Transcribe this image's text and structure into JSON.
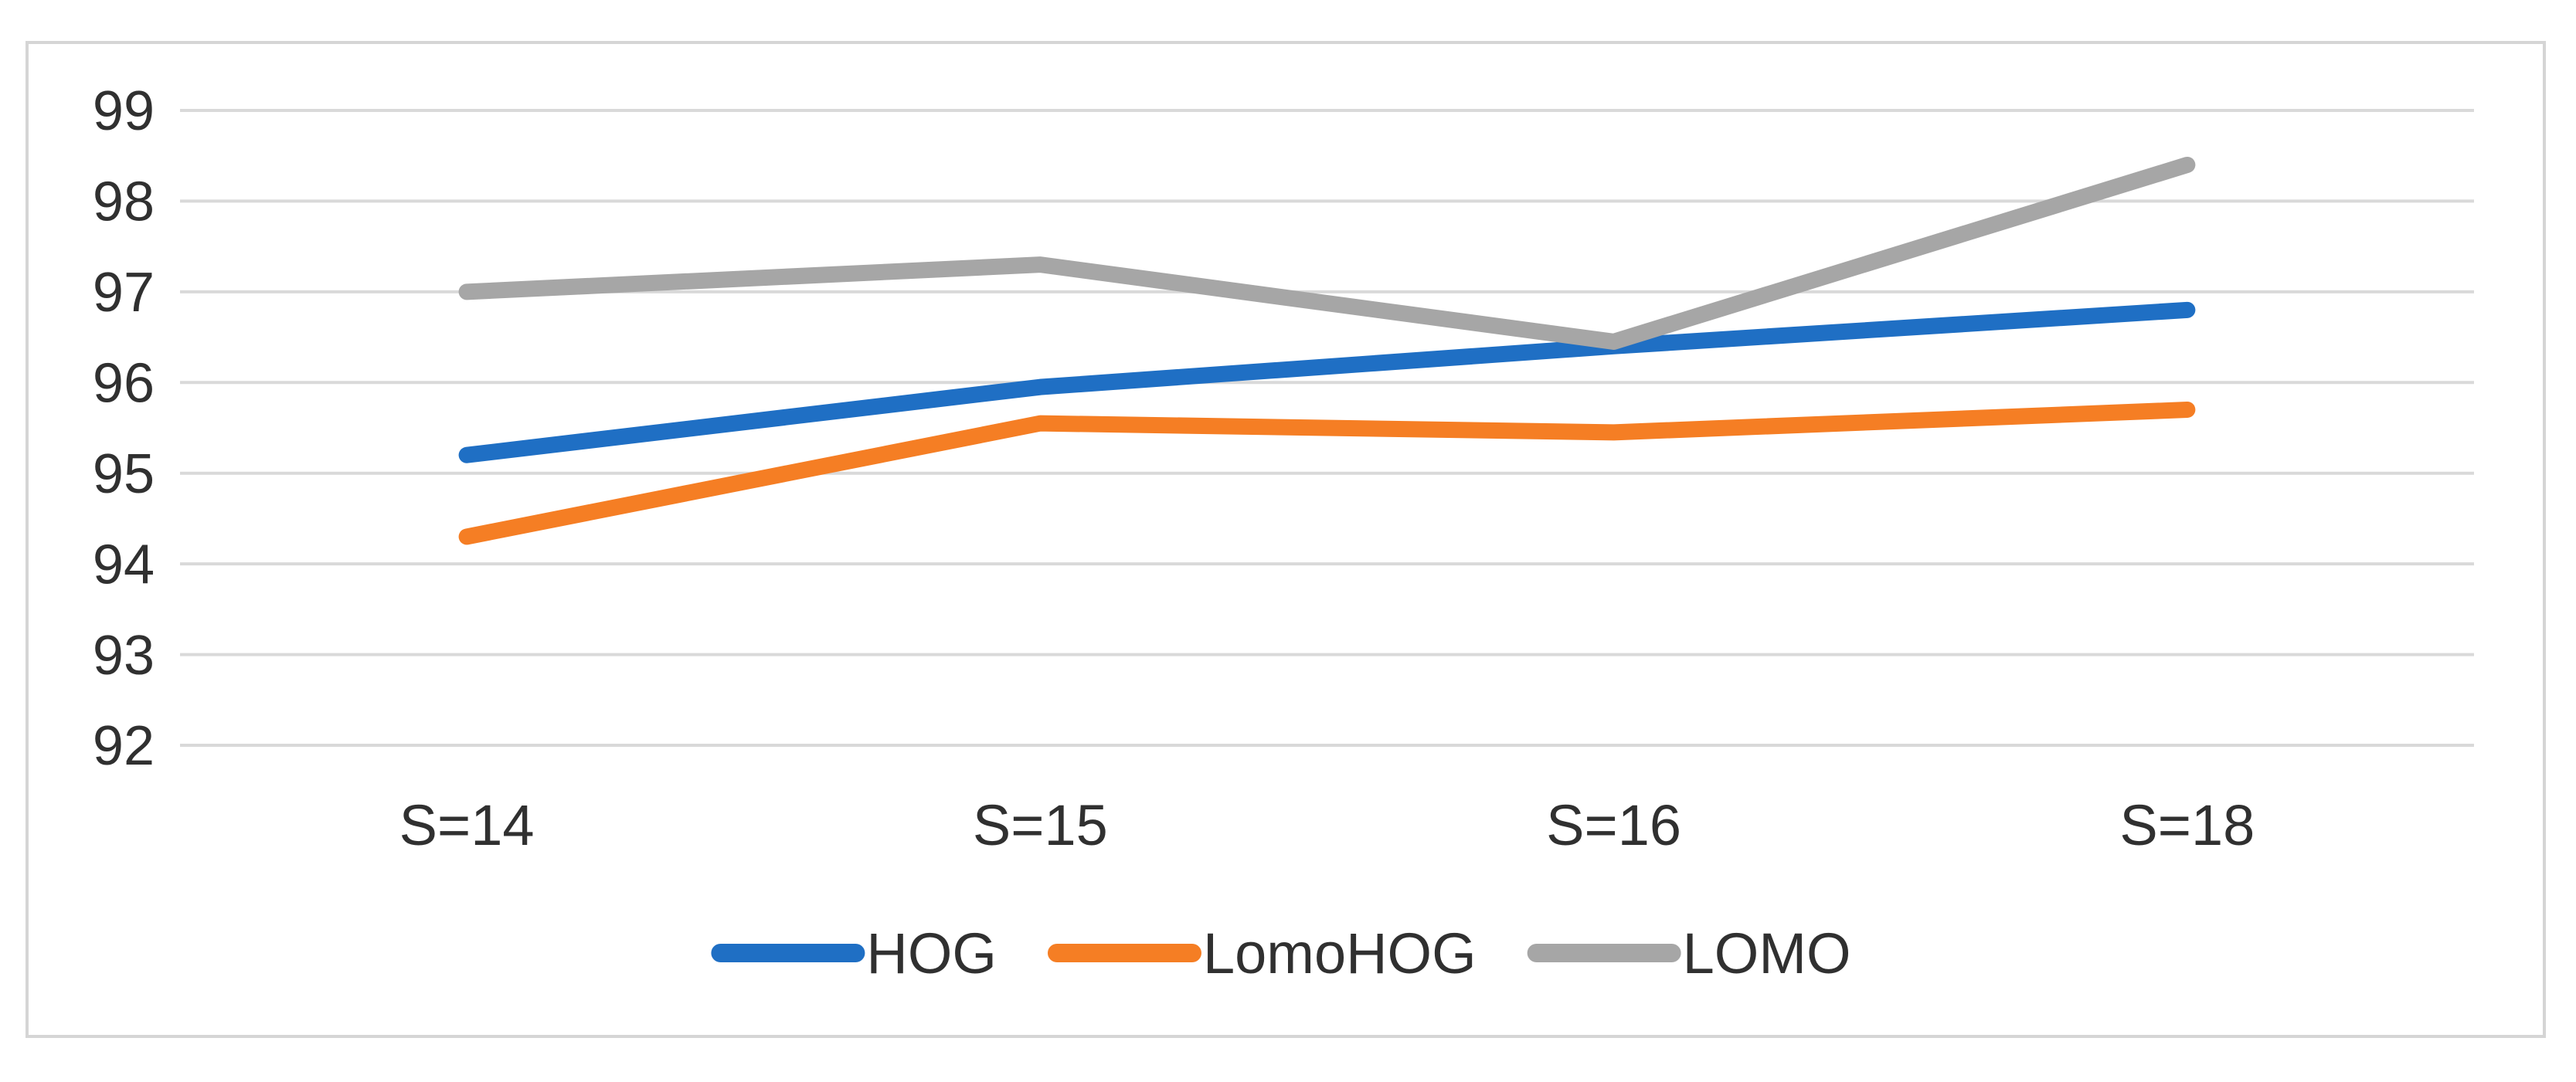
{
  "figure": {
    "background": "#ffffff",
    "border_color": "#d5d5d5"
  },
  "chart_data": {
    "type": "line",
    "title": "",
    "xlabel": "",
    "ylabel": "",
    "categories": [
      "S=14",
      "S=15",
      "S=16",
      "S=18"
    ],
    "series": [
      {
        "name": "HOG",
        "color": "#1f6fc4",
        "values": [
          95.2,
          95.95,
          96.4,
          96.8
        ]
      },
      {
        "name": "LomoHOG",
        "color": "#f57e24",
        "values": [
          94.3,
          95.55,
          95.45,
          95.7
        ]
      },
      {
        "name": "LOMO",
        "color": "#a6a6a6",
        "values": [
          97.0,
          97.3,
          96.45,
          98.4
        ]
      }
    ],
    "y_axis": {
      "min": 92,
      "max": 99,
      "step": 1,
      "tick_labels": [
        "99",
        "98",
        "97",
        "96",
        "95",
        "94",
        "93",
        "92"
      ]
    },
    "grid": true,
    "gridline_color": "#d9d9d9",
    "text_color": "#303030",
    "legend_position": "bottom"
  }
}
